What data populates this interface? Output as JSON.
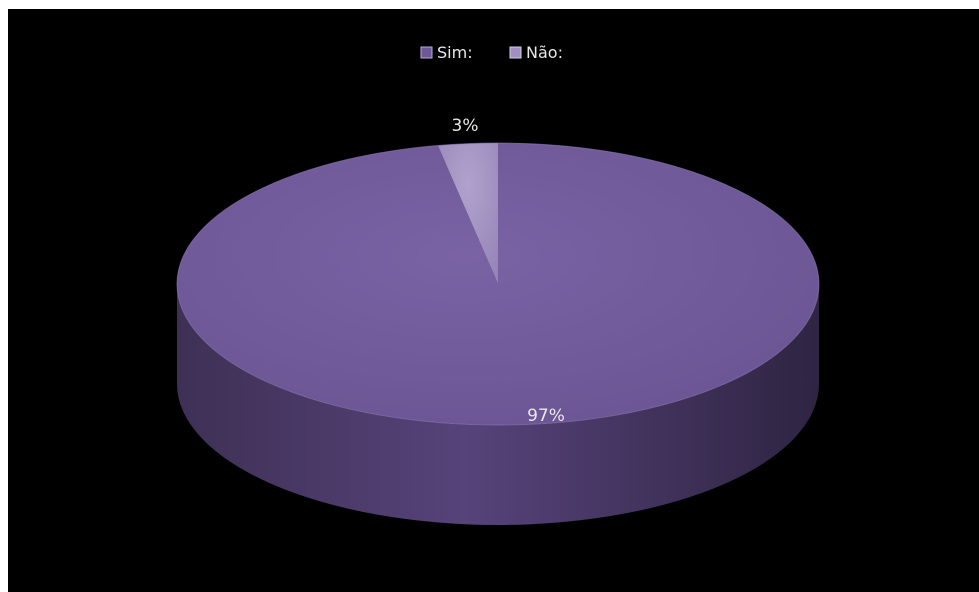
{
  "chart_data": {
    "type": "pie",
    "title": "",
    "categories": [
      "Sim:",
      "Não:"
    ],
    "values": [
      97,
      3
    ],
    "value_labels": [
      "97%",
      "3%"
    ],
    "colors": {
      "Sim:": "#6f5898",
      "Não:": "#a08fc0"
    },
    "legend_position": "top",
    "three_d": true
  },
  "background_color": "#000000"
}
